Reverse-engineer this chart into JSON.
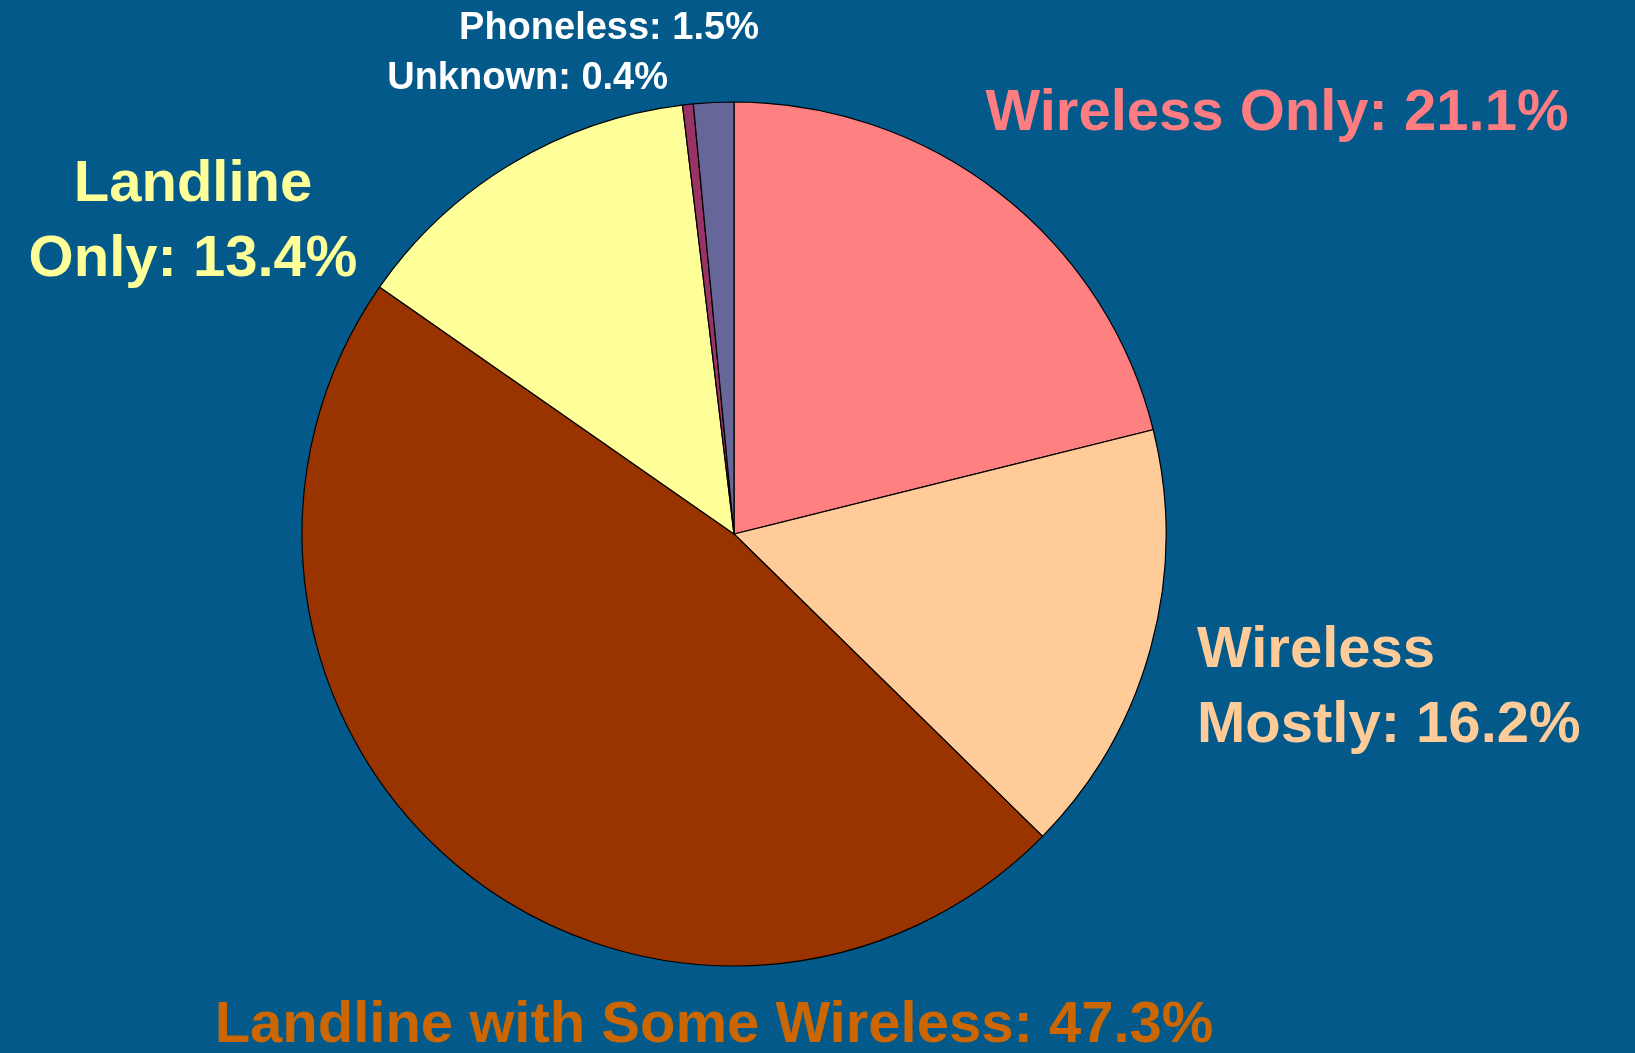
{
  "chart_data": {
    "type": "pie",
    "categories": [
      "Wireless Only",
      "Wireless Mostly",
      "Landline with Some Wireless",
      "Landline Only",
      "Unknown",
      "Phoneless"
    ],
    "values": [
      21.1,
      16.2,
      47.3,
      13.4,
      0.4,
      1.5
    ],
    "value_labels": [
      "21.1%",
      "16.2%",
      "47.3%",
      "13.4%",
      "0.4%",
      "1.5%"
    ],
    "colors": [
      "#ff8080",
      "#ffcc99",
      "#993300",
      "#ffff99",
      "#993366",
      "#666699"
    ]
  }
}
